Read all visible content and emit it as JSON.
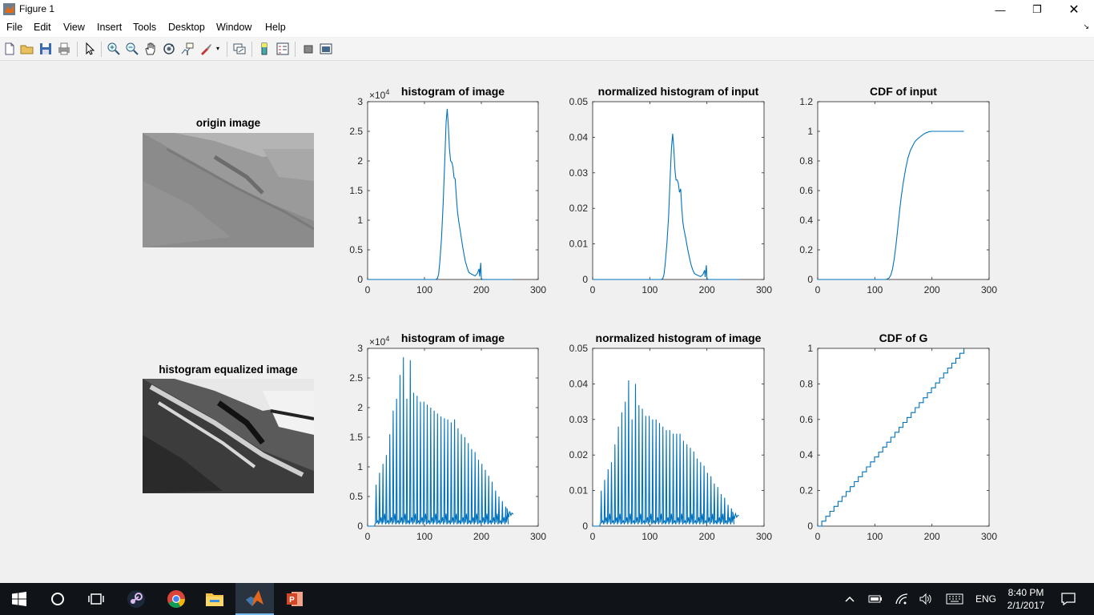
{
  "window": {
    "title": "Figure 1",
    "controls": {
      "minimize": "—",
      "maximize": "❐",
      "close": "✕"
    }
  },
  "menubar": {
    "items": [
      "File",
      "Edit",
      "View",
      "Insert",
      "Tools",
      "Desktop",
      "Window",
      "Help"
    ]
  },
  "toolbar": {
    "buttons": [
      "new-figure",
      "open-file",
      "save",
      "print",
      "edit-plot",
      "zoom-in",
      "zoom-out",
      "pan",
      "rotate-3d",
      "data-cursor",
      "brush",
      "link-plot",
      "colorbar",
      "legend",
      "hide-plot-tools",
      "show-plot-tools"
    ]
  },
  "figure": {
    "image_panels": [
      {
        "title": "origin image"
      },
      {
        "title": "histogram equalized image"
      }
    ],
    "axes": [
      {
        "title": "histogram of image",
        "yexponent": "4",
        "chart_data": {
          "type": "line",
          "xlim": [
            0,
            300
          ],
          "ylim": [
            0,
            3
          ],
          "xticks": [
            "0",
            "100",
            "200",
            "300"
          ],
          "yticks": [
            "0",
            "0.5",
            "1",
            "1.5",
            "2",
            "2.5",
            "3"
          ],
          "x": [
            0,
            120,
            123,
            125,
            127,
            130,
            133,
            136,
            138,
            140,
            142,
            144,
            146,
            148,
            150,
            152,
            154,
            156,
            158,
            160,
            163,
            166,
            169,
            172,
            175,
            178,
            181,
            185,
            189,
            193,
            196,
            197,
            199,
            200,
            202,
            205,
            210,
            256
          ],
          "y": [
            0,
            0,
            0.02,
            0.1,
            0.3,
            0.7,
            1.3,
            2.1,
            2.65,
            2.88,
            2.6,
            2.2,
            2.0,
            1.98,
            1.9,
            1.72,
            1.7,
            1.4,
            1.15,
            1.0,
            0.82,
            0.62,
            0.45,
            0.3,
            0.2,
            0.12,
            0.1,
            0.08,
            0.06,
            0.1,
            0.18,
            0.05,
            0.28,
            0.02,
            0,
            0,
            0,
            0
          ],
          "grid": false,
          "legend": "none"
        }
      },
      {
        "title": "normalized histogram of input",
        "yexponent": "",
        "chart_data": {
          "type": "line",
          "xlim": [
            0,
            300
          ],
          "ylim": [
            0,
            0.05
          ],
          "xticks": [
            "0",
            "100",
            "200",
            "300"
          ],
          "yticks": [
            "0",
            "0.01",
            "0.02",
            "0.03",
            "0.04",
            "0.05"
          ],
          "x": [
            0,
            120,
            123,
            125,
            127,
            130,
            133,
            136,
            138,
            140,
            142,
            144,
            146,
            148,
            150,
            152,
            154,
            156,
            158,
            160,
            163,
            166,
            169,
            172,
            175,
            178,
            181,
            185,
            189,
            193,
            196,
            197,
            199,
            200,
            202,
            205,
            210,
            256
          ],
          "y": [
            0,
            0,
            0.0003,
            0.0015,
            0.0045,
            0.01,
            0.018,
            0.03,
            0.037,
            0.041,
            0.037,
            0.031,
            0.028,
            0.028,
            0.027,
            0.0245,
            0.0255,
            0.02,
            0.016,
            0.014,
            0.0115,
            0.0088,
            0.0064,
            0.0043,
            0.0028,
            0.0017,
            0.0014,
            0.0011,
            0.0008,
            0.0014,
            0.0026,
            0.0007,
            0.004,
            0.0003,
            0,
            0,
            0,
            0
          ],
          "grid": false,
          "legend": "none"
        }
      },
      {
        "title": "CDF of input",
        "yexponent": "",
        "chart_data": {
          "type": "line",
          "xlim": [
            0,
            300
          ],
          "ylim": [
            0,
            1.2
          ],
          "xticks": [
            "0",
            "100",
            "200",
            "300"
          ],
          "yticks": [
            "0",
            "0.2",
            "0.4",
            "0.6",
            "0.8",
            "1",
            "1.2"
          ],
          "x": [
            0,
            120,
            125,
            128,
            131,
            134,
            137,
            140,
            143,
            146,
            150,
            154,
            158,
            162,
            166,
            170,
            175,
            180,
            185,
            190,
            195,
            200,
            256
          ],
          "y": [
            0,
            0,
            0.01,
            0.03,
            0.07,
            0.14,
            0.23,
            0.34,
            0.45,
            0.55,
            0.66,
            0.75,
            0.82,
            0.87,
            0.9,
            0.93,
            0.95,
            0.965,
            0.98,
            0.99,
            0.998,
            1,
            1
          ],
          "grid": false,
          "legend": "none"
        }
      },
      {
        "title": "histogram of image",
        "yexponent": "4",
        "chart_data": {
          "type": "line",
          "xlim": [
            0,
            300
          ],
          "ylim": [
            0,
            3
          ],
          "xticks": [
            "0",
            "100",
            "200",
            "300"
          ],
          "yticks": [
            "0",
            "0.5",
            "1",
            "1.5",
            "2",
            "2.5",
            "3"
          ],
          "spike_x": [
            15,
            21,
            27,
            33,
            39,
            45,
            51,
            57,
            63,
            69,
            75,
            81,
            87,
            93,
            99,
            105,
            111,
            117,
            123,
            129,
            135,
            141,
            147,
            153,
            159,
            165,
            171,
            177,
            183,
            189,
            195,
            201,
            207,
            213,
            219,
            225,
            231,
            237,
            243
          ],
          "spike_y": [
            0.7,
            0.9,
            1.05,
            1.2,
            1.55,
            1.95,
            2.15,
            2.55,
            2.85,
            2.15,
            2.8,
            2.25,
            2.2,
            2.1,
            2.1,
            2.05,
            2.0,
            1.95,
            1.9,
            1.85,
            1.82,
            1.8,
            1.75,
            1.8,
            1.65,
            1.55,
            1.5,
            1.4,
            1.3,
            1.25,
            1.12,
            1.05,
            0.95,
            0.85,
            0.75,
            0.6,
            0.5,
            0.42,
            0.33
          ],
          "tail_x": [
            245,
            248,
            250,
            252,
            254,
            256
          ],
          "tail_y": [
            0.3,
            0.15,
            0.25,
            0.18,
            0.22,
            0.2
          ],
          "grid": false,
          "legend": "none"
        }
      },
      {
        "title": "normalized histogram of image",
        "yexponent": "",
        "chart_data": {
          "type": "line",
          "xlim": [
            0,
            300
          ],
          "ylim": [
            0,
            0.05
          ],
          "xticks": [
            "0",
            "100",
            "200",
            "300"
          ],
          "yticks": [
            "0",
            "0.01",
            "0.02",
            "0.03",
            "0.04",
            "0.05"
          ],
          "spike_x": [
            15,
            21,
            27,
            33,
            39,
            45,
            51,
            57,
            63,
            69,
            75,
            81,
            87,
            93,
            99,
            105,
            111,
            117,
            123,
            129,
            135,
            141,
            147,
            153,
            159,
            165,
            171,
            177,
            183,
            189,
            195,
            201,
            207,
            213,
            219,
            225,
            231,
            237,
            243
          ],
          "spike_y": [
            0.01,
            0.013,
            0.016,
            0.018,
            0.023,
            0.028,
            0.032,
            0.035,
            0.041,
            0.03,
            0.04,
            0.034,
            0.033,
            0.031,
            0.031,
            0.03,
            0.03,
            0.029,
            0.028,
            0.027,
            0.027,
            0.026,
            0.026,
            0.026,
            0.024,
            0.023,
            0.022,
            0.021,
            0.019,
            0.018,
            0.017,
            0.015,
            0.014,
            0.012,
            0.011,
            0.009,
            0.008,
            0.006,
            0.005
          ],
          "tail_x": [
            245,
            248,
            250,
            252,
            254,
            256
          ],
          "tail_y": [
            0.004,
            0.002,
            0.0035,
            0.0025,
            0.003,
            0.003
          ],
          "grid": false,
          "legend": "none"
        }
      },
      {
        "title": "CDF of G",
        "yexponent": "",
        "chart_data": {
          "type": "line",
          "xlim": [
            0,
            300
          ],
          "ylim": [
            0,
            1
          ],
          "xticks": [
            "0",
            "100",
            "200",
            "300"
          ],
          "yticks": [
            "0",
            "0.2",
            "0.4",
            "0.6",
            "0.8",
            "1"
          ],
          "x": [
            0,
            256
          ],
          "y": [
            0,
            1
          ],
          "staircase": true,
          "grid": false,
          "legend": "none"
        }
      }
    ],
    "series_color": "#0072bd"
  },
  "taskbar": {
    "apps": [
      "start-icon",
      "cortana-icon",
      "task-view-icon",
      "steam-icon",
      "chrome-icon",
      "file-explorer-icon",
      "matlab-icon",
      "powerpoint-icon"
    ],
    "tray": {
      "language": "ENG",
      "time": "8:40 PM",
      "date": "2/1/2017"
    }
  }
}
